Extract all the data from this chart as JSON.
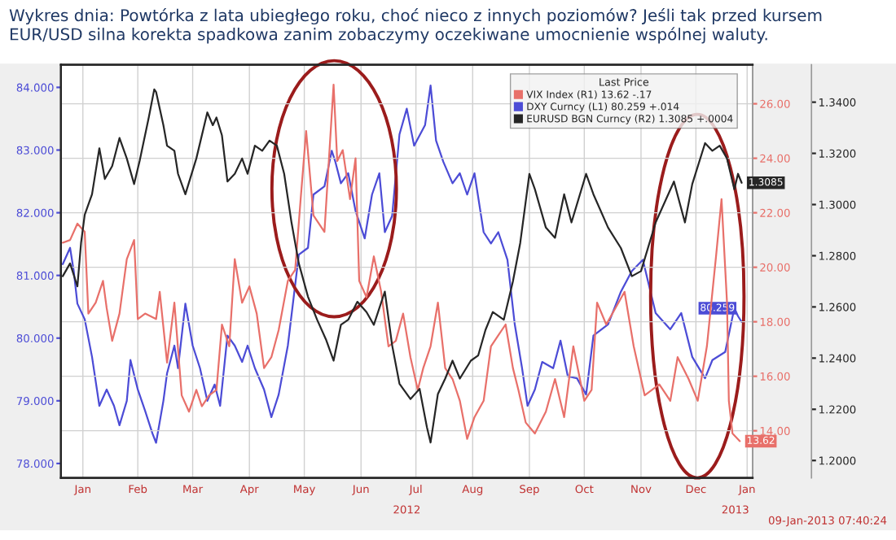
{
  "chart_data": {
    "type": "line",
    "title": "Wykres dnia: Powtórka z lata ubiegłego roku, choć nieco z innych poziomów? Jeśli tak przed kursem EUR/USD silna korekta spadkowa zanim zobaczymy oczekiwane umocnienie wspólnej waluty.",
    "legend_title": "Last Price",
    "legend": "top right",
    "grid": true,
    "marker": "none",
    "line_style": "solid",
    "annotations": [
      "2012",
      "2013",
      "09-Jan-2013 07:40:24"
    ],
    "xlim": [
      "2012-01-04",
      "2013-01-16"
    ],
    "xticks": [
      {
        "value": "2012-01-16",
        "label": "Jan"
      },
      {
        "value": "2012-02-15",
        "label": "Feb"
      },
      {
        "value": "2012-03-16",
        "label": "Mar"
      },
      {
        "value": "2012-04-16",
        "label": "Apr"
      },
      {
        "value": "2012-05-16",
        "label": "May"
      },
      {
        "value": "2012-06-16",
        "label": "Jun"
      },
      {
        "value": "2012-07-16",
        "label": "Jul"
      },
      {
        "value": "2012-08-16",
        "label": "Aug"
      },
      {
        "value": "2012-09-16",
        "label": "Sep"
      },
      {
        "value": "2012-10-16",
        "label": "Oct"
      },
      {
        "value": "2012-11-16",
        "label": "Nov"
      },
      {
        "value": "2012-12-16",
        "label": "Dec"
      },
      {
        "value": "2013-01-13",
        "label": "Jan"
      }
    ],
    "ylim": [
      77.77,
      84.36
    ],
    "yticks": [
      {
        "value": 78,
        "label": "78.000"
      },
      {
        "value": 79,
        "label": "79.000"
      },
      {
        "value": 80,
        "label": "80.000"
      },
      {
        "value": 81,
        "label": "81.000"
      },
      {
        "value": 82,
        "label": "82.000"
      },
      {
        "value": 83,
        "label": "83.000"
      },
      {
        "value": 84,
        "label": "84.000"
      }
    ],
    "y2lim": [
      12.27,
      27.43
    ],
    "y2ticks": [
      {
        "value": 14,
        "label": "14.00"
      },
      {
        "value": 16,
        "label": "16.00"
      },
      {
        "value": 18,
        "label": "18.00"
      },
      {
        "value": 20,
        "label": "20.00"
      },
      {
        "value": 22,
        "label": "22.00"
      },
      {
        "value": 24,
        "label": "24.00"
      },
      {
        "value": 26,
        "label": "26.00"
      }
    ],
    "y3lim": [
      1.1932,
      1.3546
    ],
    "y3ticks": [
      {
        "value": 1.2,
        "label": "1.2000"
      },
      {
        "value": 1.22,
        "label": "1.2200"
      },
      {
        "value": 1.24,
        "label": "1.2400"
      },
      {
        "value": 1.26,
        "label": "1.2600"
      },
      {
        "value": 1.28,
        "label": "1.2800"
      },
      {
        "value": 1.3,
        "label": "1.3000"
      },
      {
        "value": 1.32,
        "label": "1.3200"
      },
      {
        "value": 1.34,
        "label": "1.3400"
      }
    ],
    "series": [
      {
        "name": "VIX Index (R1) 13.62 -.17",
        "color": "#e8706a",
        "axis": "y2",
        "x": [
          "2012-01-05",
          "2012-01-09",
          "2012-01-13",
          "2012-01-17",
          "2012-01-19",
          "2012-01-23",
          "2012-01-27",
          "2012-01-29",
          "2012-02-01",
          "2012-02-05",
          "2012-02-09",
          "2012-02-13",
          "2012-02-15",
          "2012-02-19",
          "2012-02-25",
          "2012-02-27",
          "2012-03-02",
          "2012-03-06",
          "2012-03-10",
          "2012-03-14",
          "2012-03-18",
          "2012-03-21",
          "2012-03-25",
          "2012-03-29",
          "2012-04-01",
          "2012-04-05",
          "2012-04-08",
          "2012-04-12",
          "2012-04-16",
          "2012-04-20",
          "2012-04-24",
          "2012-04-28",
          "2012-05-02",
          "2012-05-07",
          "2012-05-11",
          "2012-05-14",
          "2012-05-17",
          "2012-05-21",
          "2012-05-27",
          "2012-06-01",
          "2012-06-03",
          "2012-06-06",
          "2012-06-10",
          "2012-06-13",
          "2012-06-15",
          "2012-06-19",
          "2012-06-23",
          "2012-06-27",
          "2012-07-01",
          "2012-07-05",
          "2012-07-09",
          "2012-07-13",
          "2012-07-17",
          "2012-07-20",
          "2012-07-24",
          "2012-07-28",
          "2012-08-01",
          "2012-08-05",
          "2012-08-09",
          "2012-08-13",
          "2012-08-17",
          "2012-08-22",
          "2012-08-26",
          "2012-08-30",
          "2012-09-03",
          "2012-09-07",
          "2012-09-10",
          "2012-09-14",
          "2012-09-19",
          "2012-09-25",
          "2012-09-30",
          "2012-10-05",
          "2012-10-10",
          "2012-10-16",
          "2012-10-20",
          "2012-10-23",
          "2012-10-28",
          "2012-11-07",
          "2012-11-12",
          "2012-11-18",
          "2012-11-26",
          "2012-12-02",
          "2012-12-06",
          "2012-12-12",
          "2012-12-17",
          "2012-12-22",
          "2012-12-27",
          "2012-12-30",
          "2013-01-02",
          "2013-01-03",
          "2013-01-05",
          "2013-01-09"
        ],
        "values": [
          20.9,
          21.0,
          21.6,
          21.3,
          18.3,
          18.7,
          19.5,
          18.5,
          17.3,
          18.3,
          20.3,
          21.0,
          18.1,
          18.3,
          18.1,
          19.1,
          16.5,
          18.7,
          15.3,
          14.7,
          15.5,
          14.9,
          15.3,
          15.5,
          17.9,
          17.1,
          20.3,
          18.7,
          19.3,
          18.3,
          16.3,
          16.7,
          17.7,
          19.5,
          19.9,
          22.5,
          25.0,
          21.9,
          21.3,
          26.7,
          23.9,
          24.3,
          22.5,
          24.0,
          19.5,
          18.9,
          20.4,
          19.1,
          17.1,
          17.3,
          18.3,
          16.7,
          15.5,
          16.3,
          17.1,
          18.7,
          16.3,
          15.9,
          15.1,
          13.7,
          14.5,
          15.1,
          17.1,
          17.5,
          17.9,
          16.3,
          15.5,
          14.3,
          13.9,
          14.7,
          15.9,
          14.5,
          17.1,
          15.1,
          15.5,
          18.7,
          17.9,
          19.1,
          17.1,
          15.3,
          15.7,
          15.1,
          16.7,
          15.9,
          15.1,
          17.1,
          20.4,
          22.5,
          18.7,
          15.1,
          13.9,
          13.62
        ],
        "value_labels": [
          null,
          null,
          null,
          null,
          null,
          null,
          null,
          null,
          null,
          null,
          null,
          null,
          null,
          null,
          null,
          null,
          null,
          null,
          null,
          null,
          null,
          null,
          null,
          null,
          null,
          null,
          null,
          null,
          null,
          null,
          null,
          null,
          null,
          null,
          null,
          null,
          null,
          null,
          null,
          null,
          null,
          null,
          null,
          null,
          null,
          null,
          null,
          null,
          null,
          null,
          null,
          null,
          null,
          null,
          null,
          null,
          null,
          null,
          null,
          null,
          null,
          null,
          null,
          null,
          null,
          null,
          null,
          null,
          null,
          null,
          null,
          null,
          null,
          null,
          null,
          null,
          null,
          null,
          null,
          null,
          null,
          null,
          null,
          null,
          null,
          null,
          null,
          null,
          null,
          null,
          null,
          "13.62"
        ]
      },
      {
        "name": "DXY Curncy (L1) 80.259 +.014",
        "color": "#4c4cd6",
        "axis": "y",
        "x": [
          "2012-01-05",
          "2012-01-09",
          "2012-01-11",
          "2012-01-13",
          "2012-01-17",
          "2012-01-21",
          "2012-01-25",
          "2012-01-29",
          "2012-02-02",
          "2012-02-05",
          "2012-02-09",
          "2012-02-11",
          "2012-02-15",
          "2012-02-19",
          "2012-02-23",
          "2012-02-25",
          "2012-02-29",
          "2012-03-02",
          "2012-03-06",
          "2012-03-08",
          "2012-03-12",
          "2012-03-16",
          "2012-03-20",
          "2012-03-24",
          "2012-03-28",
          "2012-03-31",
          "2012-04-04",
          "2012-04-08",
          "2012-04-12",
          "2012-04-15",
          "2012-04-19",
          "2012-04-24",
          "2012-04-28",
          "2012-05-02",
          "2012-05-07",
          "2012-05-13",
          "2012-05-18",
          "2012-05-21",
          "2012-05-27",
          "2012-05-31",
          "2012-06-02",
          "2012-06-05",
          "2012-06-09",
          "2012-06-13",
          "2012-06-18",
          "2012-06-22",
          "2012-06-26",
          "2012-06-29",
          "2012-07-03",
          "2012-07-07",
          "2012-07-11",
          "2012-07-15",
          "2012-07-21",
          "2012-07-24",
          "2012-07-27",
          "2012-07-31",
          "2012-08-05",
          "2012-08-09",
          "2012-08-13",
          "2012-08-17",
          "2012-08-22",
          "2012-08-26",
          "2012-08-30",
          "2012-09-04",
          "2012-09-08",
          "2012-09-12",
          "2012-09-15",
          "2012-09-19",
          "2012-09-23",
          "2012-09-29",
          "2012-10-03",
          "2012-10-07",
          "2012-10-12",
          "2012-10-17",
          "2012-10-21",
          "2012-10-29",
          "2012-11-05",
          "2012-11-11",
          "2012-11-17",
          "2012-11-24",
          "2012-12-02",
          "2012-12-08",
          "2012-12-14",
          "2012-12-21",
          "2012-12-25",
          "2013-01-01",
          "2013-01-06",
          "2013-01-08",
          "2013-01-10"
        ],
        "values": [
          81.18,
          81.44,
          81.07,
          80.55,
          80.3,
          79.7,
          78.92,
          79.18,
          78.92,
          78.61,
          79.0,
          79.65,
          79.18,
          78.84,
          78.48,
          78.33,
          79.0,
          79.44,
          79.88,
          79.52,
          80.55,
          79.88,
          79.52,
          79.0,
          79.26,
          78.92,
          80.04,
          79.88,
          79.62,
          79.88,
          79.52,
          79.18,
          78.74,
          79.1,
          79.88,
          81.33,
          81.44,
          82.29,
          82.42,
          82.99,
          82.81,
          82.47,
          82.63,
          82.03,
          81.59,
          82.29,
          82.63,
          81.69,
          81.95,
          83.25,
          83.66,
          83.07,
          83.4,
          84.03,
          83.15,
          82.81,
          82.47,
          82.63,
          82.29,
          82.63,
          81.69,
          81.51,
          81.69,
          81.25,
          80.22,
          79.52,
          78.92,
          79.18,
          79.62,
          79.52,
          79.96,
          79.39,
          79.36,
          79.1,
          80.04,
          80.22,
          80.74,
          81.07,
          81.25,
          80.4,
          80.14,
          80.4,
          79.7,
          79.36,
          79.65,
          79.78,
          80.48,
          80.35,
          80.259
        ],
        "value_labels": [
          null,
          null,
          null,
          null,
          null,
          null,
          null,
          null,
          null,
          null,
          null,
          null,
          null,
          null,
          null,
          null,
          null,
          null,
          null,
          null,
          null,
          null,
          null,
          null,
          null,
          null,
          null,
          null,
          null,
          null,
          null,
          null,
          null,
          null,
          null,
          null,
          null,
          null,
          null,
          null,
          null,
          null,
          null,
          null,
          null,
          null,
          null,
          null,
          null,
          null,
          null,
          null,
          null,
          null,
          null,
          null,
          null,
          null,
          null,
          null,
          null,
          null,
          null,
          null,
          null,
          null,
          null,
          null,
          null,
          null,
          null,
          null,
          null,
          null,
          null,
          null,
          null,
          null,
          null,
          null,
          null,
          null,
          null,
          null,
          null,
          null,
          null,
          null,
          "80.259"
        ]
      },
      {
        "name": "EURUSD BGN Curncy (R2) 1.3085 +.0004",
        "color": "#262626",
        "axis": "y3",
        "x": [
          "2012-01-05",
          "2012-01-09",
          "2012-01-13",
          "2012-01-15",
          "2012-01-17",
          "2012-01-21",
          "2012-01-25",
          "2012-01-28",
          "2012-02-01",
          "2012-02-05",
          "2012-02-09",
          "2012-02-13",
          "2012-02-16",
          "2012-02-21",
          "2012-02-24",
          "2012-02-25",
          "2012-02-29",
          "2012-03-02",
          "2012-03-06",
          "2012-03-08",
          "2012-03-12",
          "2012-03-18",
          "2012-03-24",
          "2012-03-27",
          "2012-03-29",
          "2012-04-01",
          "2012-04-04",
          "2012-04-08",
          "2012-04-12",
          "2012-04-15",
          "2012-04-19",
          "2012-04-23",
          "2012-04-27",
          "2012-05-01",
          "2012-05-05",
          "2012-05-09",
          "2012-05-13",
          "2012-05-18",
          "2012-05-23",
          "2012-05-28",
          "2012-06-01",
          "2012-06-05",
          "2012-06-09",
          "2012-06-14",
          "2012-06-19",
          "2012-06-23",
          "2012-06-29",
          "2012-07-03",
          "2012-07-07",
          "2012-07-13",
          "2012-07-18",
          "2012-07-22",
          "2012-07-24",
          "2012-07-28",
          "2012-08-01",
          "2012-08-05",
          "2012-08-09",
          "2012-08-15",
          "2012-08-19",
          "2012-08-23",
          "2012-08-27",
          "2012-09-02",
          "2012-09-07",
          "2012-09-11",
          "2012-09-16",
          "2012-09-19",
          "2012-09-25",
          "2012-09-30",
          "2012-10-05",
          "2012-10-09",
          "2012-10-17",
          "2012-10-21",
          "2012-10-29",
          "2012-11-05",
          "2012-11-11",
          "2012-11-16",
          "2012-11-24",
          "2012-12-04",
          "2012-12-10",
          "2012-12-14",
          "2012-12-21",
          "2012-12-25",
          "2012-12-29",
          "2013-01-02",
          "2013-01-06",
          "2013-01-08",
          "2013-01-10"
        ],
        "values": [
          1.272,
          1.277,
          1.268,
          1.285,
          1.296,
          1.304,
          1.322,
          1.31,
          1.315,
          1.326,
          1.318,
          1.308,
          1.317,
          1.334,
          1.345,
          1.344,
          1.331,
          1.323,
          1.321,
          1.312,
          1.304,
          1.318,
          1.336,
          1.331,
          1.334,
          1.327,
          1.309,
          1.312,
          1.318,
          1.312,
          1.323,
          1.321,
          1.325,
          1.323,
          1.312,
          1.293,
          1.277,
          1.264,
          1.255,
          1.247,
          1.239,
          1.253,
          1.255,
          1.262,
          1.258,
          1.253,
          1.266,
          1.245,
          1.23,
          1.224,
          1.228,
          1.213,
          1.207,
          1.226,
          1.232,
          1.239,
          1.232,
          1.239,
          1.241,
          1.251,
          1.258,
          1.255,
          1.27,
          1.285,
          1.312,
          1.306,
          1.291,
          1.287,
          1.304,
          1.293,
          1.312,
          1.304,
          1.291,
          1.283,
          1.272,
          1.274,
          1.293,
          1.309,
          1.293,
          1.308,
          1.324,
          1.321,
          1.323,
          1.318,
          1.306,
          1.312,
          1.3085
        ],
        "value_labels": [
          null,
          null,
          null,
          null,
          null,
          null,
          null,
          null,
          null,
          null,
          null,
          null,
          null,
          null,
          null,
          null,
          null,
          null,
          null,
          null,
          null,
          null,
          null,
          null,
          null,
          null,
          null,
          null,
          null,
          null,
          null,
          null,
          null,
          null,
          null,
          null,
          null,
          null,
          null,
          null,
          null,
          null,
          null,
          null,
          null,
          null,
          null,
          null,
          null,
          null,
          null,
          null,
          null,
          null,
          null,
          null,
          null,
          null,
          null,
          null,
          null,
          null,
          null,
          null,
          null,
          null,
          null,
          null,
          null,
          null,
          null,
          null,
          null,
          null,
          null,
          null,
          null,
          null,
          null,
          null,
          null,
          null,
          null,
          null,
          null,
          null,
          "1.3085"
        ]
      }
    ]
  }
}
